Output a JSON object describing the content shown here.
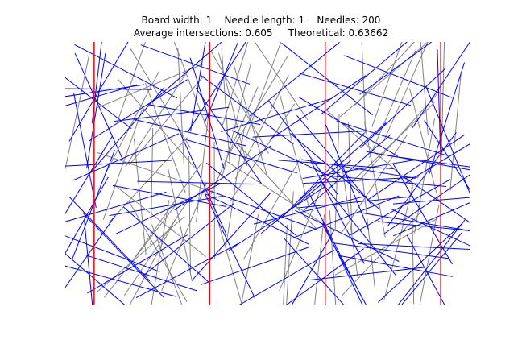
{
  "title": {
    "line1": "Board width: 1    Needle length: 1    Needles: 200",
    "line2": "Average intersections: 0.605     Theoretical: 0.63662"
  },
  "colors": {
    "board_line": "#ff0000",
    "crossing_needle": "#0000ff",
    "non_crossing_needle": "#808080",
    "background": "#ffffff"
  },
  "chart_data": {
    "type": "scatter",
    "title": "Board width: 1    Needle length: 1    Needles: 200\nAverage intersections: 0.605     Theoretical: 0.63662",
    "board_width": 1,
    "needle_length": 1,
    "needle_count": 200,
    "average_intersections": 0.605,
    "theoretical": 0.63662,
    "board_lines_x": [
      0,
      1,
      2,
      3
    ],
    "xlim": [
      -0.25,
      3.25
    ],
    "ylim": [
      0,
      2.25
    ],
    "axes_visible": false,
    "grid": false
  }
}
